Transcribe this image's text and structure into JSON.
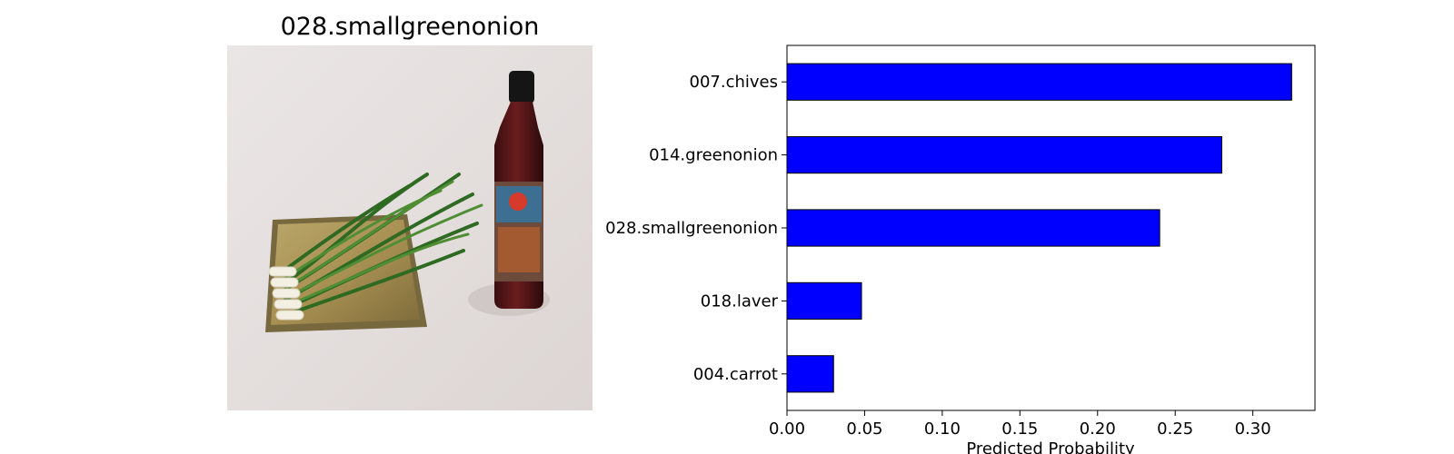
{
  "image_panel": {
    "title": "028.smallgreenonion"
  },
  "chart_data": {
    "type": "bar",
    "orientation": "horizontal",
    "categories": [
      "007.chives",
      "014.greenonion",
      "028.smallgreenonion",
      "018.laver",
      "004.carrot"
    ],
    "values": [
      0.325,
      0.28,
      0.24,
      0.048,
      0.03
    ],
    "xlabel": "Predicted Probability",
    "ylabel": "",
    "title": "",
    "xlim": [
      0,
      0.34
    ],
    "xticks": [
      0.0,
      0.05,
      0.1,
      0.15,
      0.2,
      0.25,
      0.3
    ],
    "xtick_labels": [
      "0.00",
      "0.05",
      "0.10",
      "0.15",
      "0.20",
      "0.25",
      "0.30"
    ],
    "bar_color": "#0000ff",
    "grid": false,
    "legend": "none"
  }
}
